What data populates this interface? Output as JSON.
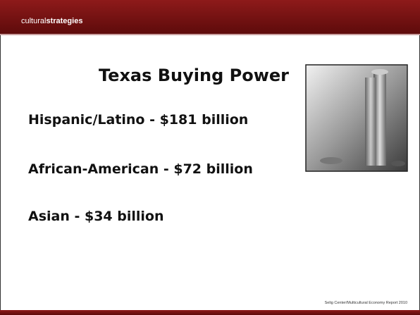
{
  "header": {
    "logo_light": "cultural",
    "logo_bold": "strategies"
  },
  "slide": {
    "title": "Texas Buying Power",
    "items": [
      "Hispanic/Latino - $181 billion",
      "African-American - $72 billion",
      "Asian - $34 billion"
    ],
    "source": "Selig Center/Multicultural Economy Report 2010"
  }
}
